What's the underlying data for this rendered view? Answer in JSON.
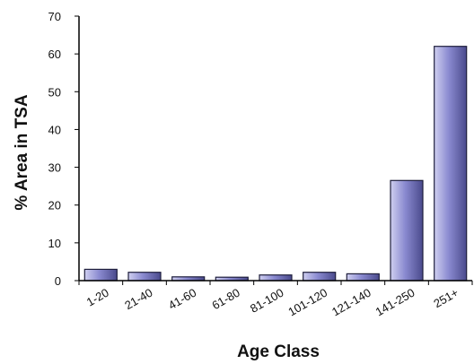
{
  "chart_data": {
    "type": "bar",
    "title": "",
    "xlabel": "Age Class",
    "ylabel": "% Area in TSA",
    "categories": [
      "1-20",
      "21-40",
      "41-60",
      "61-80",
      "81-100",
      "101-120",
      "121-140",
      "141-250",
      "251+"
    ],
    "values": [
      3.0,
      2.2,
      1.0,
      0.9,
      1.5,
      2.2,
      1.8,
      26.5,
      62.0
    ],
    "ylim": [
      0,
      70
    ],
    "yticks": [
      0,
      10,
      20,
      30,
      40,
      50,
      60,
      70
    ],
    "grid": false,
    "legend": "none",
    "colors": {
      "bar_light": "#cfcff0",
      "bar_mid": "#8a8ad0",
      "bar_dark": "#4a4a8c",
      "bar_edge": "#1e1e3c",
      "axis": "#000000"
    }
  }
}
